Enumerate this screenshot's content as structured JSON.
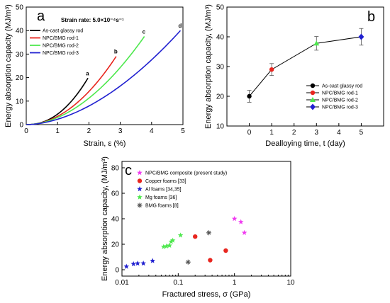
{
  "colors": {
    "black": "#000000",
    "red": "#e8261f",
    "green": "#4ee84e",
    "blue": "#2020d0",
    "magenta": "#f03cf0",
    "gray": "#555555"
  },
  "chart_data": [
    {
      "panel": "a",
      "type": "line",
      "note": "Strain rate: 5.0×10⁻⁴s⁻¹",
      "xlabel": "Strain, ε (%)",
      "ylabel": "Energy absorption capacity (MJ/m³)",
      "xlim": [
        0,
        5
      ],
      "ylim": [
        0,
        50
      ],
      "xticks": [
        0,
        1,
        2,
        3,
        4,
        5
      ],
      "yticks": [
        0,
        10,
        20,
        30,
        40,
        50
      ],
      "legend_position": "top-left",
      "series": [
        {
          "name": "As-cast glassy rod",
          "color": "black",
          "label": "a",
          "x_end": 1.97,
          "y_end": 19.8,
          "exponent": 2.2
        },
        {
          "name": "NPC/BMG rod-1",
          "color": "red",
          "label": "b",
          "x_end": 2.87,
          "y_end": 29.0,
          "exponent": 2.0
        },
        {
          "name": "NPC/BMG rod-2",
          "color": "green",
          "label": "c",
          "x_end": 3.77,
          "y_end": 37.5,
          "exponent": 1.9
        },
        {
          "name": "NPC/BMG rod-3",
          "color": "blue",
          "label": "d",
          "x_end": 4.92,
          "y_end": 40.0,
          "exponent": 1.8
        }
      ]
    },
    {
      "panel": "b",
      "type": "line",
      "xlabel": "Dealloying time, t (day)",
      "ylabel": "Energy absorption capacity, (MJ/m³)",
      "xlim": [
        -1,
        6
      ],
      "ylim": [
        10,
        50
      ],
      "xticks": [
        0,
        1,
        2,
        3,
        4,
        5
      ],
      "yticks": [
        10,
        20,
        30,
        40,
        50
      ],
      "legend_position": "bottom-right",
      "x": [
        0,
        1,
        3,
        5
      ],
      "values": [
        20,
        29,
        37.8,
        40
      ],
      "errors": [
        2,
        2,
        2.3,
        2.8
      ],
      "points": [
        {
          "name": "As-cast glassy rod",
          "color": "black",
          "marker": "circle"
        },
        {
          "name": "NPC/BMG rod-1",
          "color": "red",
          "marker": "circle"
        },
        {
          "name": "NPC/BMG rod-2",
          "color": "green",
          "marker": "triangle"
        },
        {
          "name": "NPC/BMG rod-3",
          "color": "blue",
          "marker": "diamond"
        }
      ]
    },
    {
      "panel": "c",
      "type": "scatter",
      "xlabel": "Fractured stress, σ (GPa)",
      "ylabel": "Energy absorption capacity, (MJ/m³)",
      "xscale": "log",
      "xlim": [
        0.01,
        10
      ],
      "ylim": [
        -5,
        85
      ],
      "xticks": [
        0.01,
        0.1,
        1,
        10
      ],
      "xticklabels": [
        "0.01",
        "0.1",
        "1",
        "10"
      ],
      "yticks": [
        0,
        20,
        40,
        60,
        80
      ],
      "legend_position": "top-left",
      "series": [
        {
          "name": "NPC/BMG composite (present study)",
          "color": "magenta",
          "marker": "star",
          "points": [
            [
              1.0,
              40
            ],
            [
              1.3,
              37.5
            ],
            [
              1.5,
              29
            ]
          ]
        },
        {
          "name": "Copper foams [33]",
          "color": "red",
          "marker": "circle",
          "points": [
            [
              0.2,
              26
            ],
            [
              0.37,
              7.5
            ],
            [
              0.7,
              15
            ]
          ]
        },
        {
          "name": "Al foams [34,35]",
          "color": "blue",
          "marker": "star",
          "points": [
            [
              0.012,
              2.5
            ],
            [
              0.016,
              4.5
            ],
            [
              0.019,
              5
            ],
            [
              0.024,
              5
            ],
            [
              0.035,
              7
            ]
          ]
        },
        {
          "name": "Mg foams [36]",
          "color": "green",
          "marker": "star",
          "points": [
            [
              0.055,
              18
            ],
            [
              0.062,
              18.5
            ],
            [
              0.07,
              19
            ],
            [
              0.075,
              22
            ],
            [
              0.08,
              23
            ],
            [
              0.11,
              27
            ]
          ]
        },
        {
          "name": "BMG foams [8]",
          "color": "gray",
          "marker": "asterisk",
          "points": [
            [
              0.15,
              6
            ],
            [
              0.35,
              29
            ]
          ]
        }
      ]
    }
  ]
}
